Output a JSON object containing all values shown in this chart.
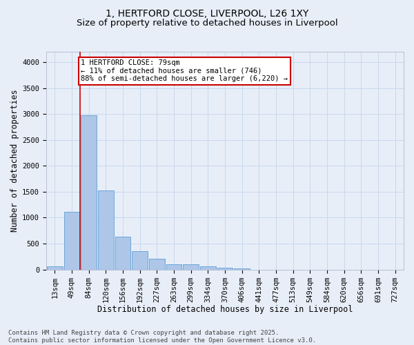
{
  "title_line1": "1, HERTFORD CLOSE, LIVERPOOL, L26 1XY",
  "title_line2": "Size of property relative to detached houses in Liverpool",
  "xlabel": "Distribution of detached houses by size in Liverpool",
  "ylabel": "Number of detached properties",
  "bar_labels": [
    "13sqm",
    "49sqm",
    "84sqm",
    "120sqm",
    "156sqm",
    "192sqm",
    "227sqm",
    "263sqm",
    "299sqm",
    "334sqm",
    "370sqm",
    "406sqm",
    "441sqm",
    "477sqm",
    "513sqm",
    "549sqm",
    "584sqm",
    "620sqm",
    "656sqm",
    "691sqm",
    "727sqm"
  ],
  "bar_values": [
    55,
    1110,
    2975,
    1530,
    635,
    350,
    210,
    100,
    100,
    65,
    35,
    20,
    0,
    0,
    0,
    0,
    0,
    0,
    0,
    0,
    0
  ],
  "bar_color": "#aec6e8",
  "bar_edge_color": "#5a9fd4",
  "grid_color": "#c8d8ec",
  "background_color": "#e8eef8",
  "vline_color": "#cc0000",
  "vline_pos": 1.5,
  "annotation_text": "1 HERTFORD CLOSE: 79sqm\n← 11% of detached houses are smaller (746)\n88% of semi-detached houses are larger (6,220) →",
  "annotation_box_color": "#ffffff",
  "annotation_box_edge": "#cc0000",
  "ylim": [
    0,
    4200
  ],
  "yticks": [
    0,
    500,
    1000,
    1500,
    2000,
    2500,
    3000,
    3500,
    4000
  ],
  "footer_line1": "Contains HM Land Registry data © Crown copyright and database right 2025.",
  "footer_line2": "Contains public sector information licensed under the Open Government Licence v3.0.",
  "title_fontsize": 10,
  "subtitle_fontsize": 9.5,
  "axis_label_fontsize": 8.5,
  "tick_fontsize": 7.5,
  "annotation_fontsize": 7.5,
  "footer_fontsize": 6.5
}
